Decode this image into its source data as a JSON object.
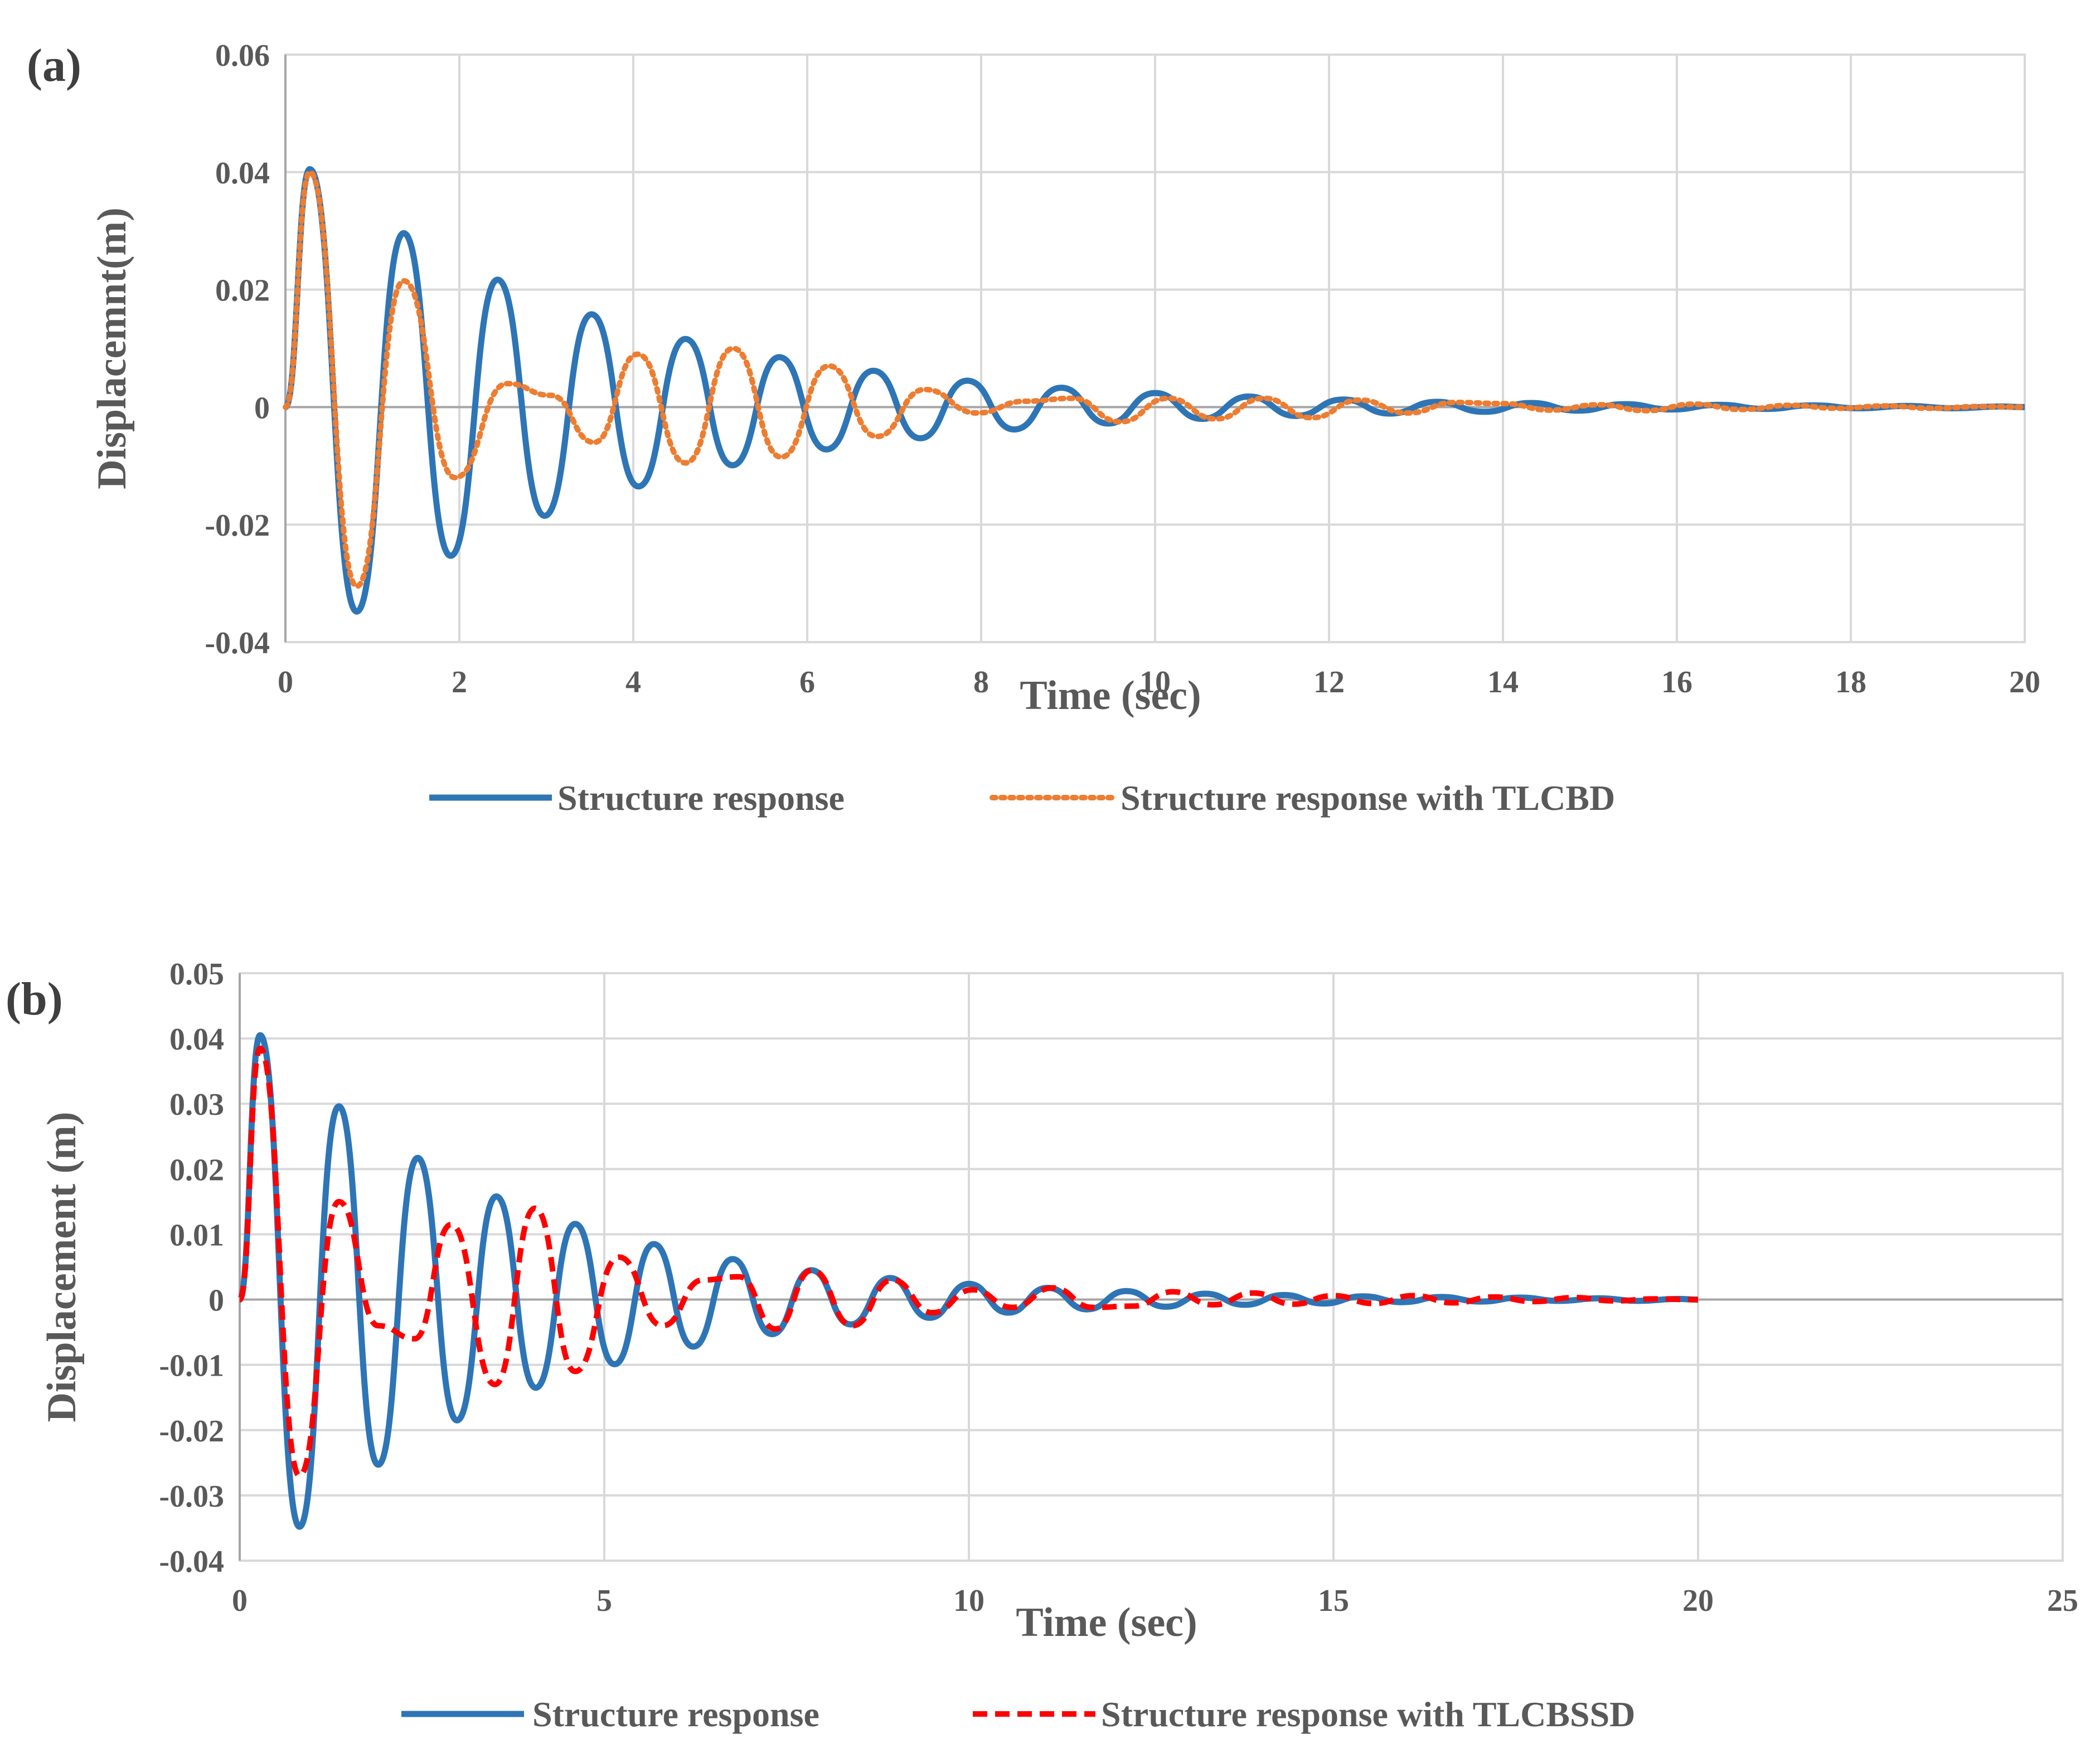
{
  "chart_data": [
    {
      "type": "line",
      "panel_label": "(a)",
      "xlabel": "Time (sec)",
      "ylabel": "Displacemnt(m)",
      "xlim": [
        0,
        20
      ],
      "ylim": [
        -0.04,
        0.06
      ],
      "xticks": [
        0,
        2,
        4,
        6,
        8,
        10,
        12,
        14,
        16,
        18,
        20
      ],
      "yticks": [
        -0.04,
        -0.02,
        0,
        0.02,
        0.04,
        0.06
      ],
      "xtick_labels": [
        "0",
        "2",
        "4",
        "6",
        "8",
        "10",
        "12",
        "14",
        "16",
        "18",
        "20"
      ],
      "ytick_labels": [
        "-0.04",
        "-0.02",
        "0",
        "0.02",
        "0.04",
        "0.06"
      ],
      "grid": true,
      "legend_position": "bottom",
      "series": [
        {
          "name": "Structure response",
          "color": "#2E75B6",
          "style": "solid",
          "x": [
            0,
            0.28,
            0.82,
            1.36,
            1.9,
            2.44,
            2.98,
            3.52,
            4.06,
            4.6,
            5.14,
            5.68,
            6.22,
            6.76,
            7.3,
            7.84,
            8.38,
            8.92,
            9.46,
            10.0,
            10.54,
            11.08,
            11.62,
            12.16,
            12.7,
            13.24,
            13.78,
            14.32,
            14.86,
            15.4,
            15.94,
            16.48,
            17.02,
            17.56,
            18.1,
            18.64,
            19.18,
            19.72,
            20.0
          ],
          "y": [
            0,
            0.0405,
            -0.0348,
            0.0296,
            -0.0253,
            0.0217,
            -0.0185,
            0.0158,
            -0.0135,
            0.0116,
            -0.0099,
            0.0085,
            -0.0072,
            0.0062,
            -0.0053,
            0.0045,
            -0.0038,
            0.0033,
            -0.0028,
            0.0024,
            -0.002,
            0.0018,
            -0.0015,
            0.0013,
            -0.0011,
            0.0009,
            -0.0008,
            0.0007,
            -0.0006,
            0.0005,
            -0.0004,
            0.0004,
            -0.0003,
            0.0003,
            -0.0002,
            0.0002,
            -0.0002,
            0.0001,
            0
          ]
        },
        {
          "name": "Structure response with TLCBD",
          "color": "#ED7D31",
          "style": "dotted",
          "x": [
            0,
            0.28,
            0.82,
            1.36,
            1.95,
            2.55,
            3.05,
            3.55,
            4.05,
            4.6,
            5.15,
            5.7,
            6.25,
            6.8,
            7.35,
            7.95,
            8.5,
            9.05,
            9.6,
            10.15,
            10.7,
            11.25,
            11.8,
            12.35,
            12.9,
            13.45,
            14.0,
            14.55,
            15.1,
            15.65,
            16.2,
            16.75,
            17.3,
            17.85,
            18.4,
            18.95,
            19.5,
            20.0
          ],
          "y": [
            0,
            0.04,
            -0.0305,
            0.0215,
            -0.012,
            0.004,
            0.002,
            -0.006,
            0.009,
            -0.0095,
            0.01,
            -0.0085,
            0.007,
            -0.005,
            0.003,
            -0.001,
            0.001,
            0.0015,
            -0.0025,
            0.0015,
            -0.002,
            0.0015,
            -0.0018,
            0.0012,
            -0.001,
            0.0008,
            0.0006,
            -0.0005,
            0.0004,
            -0.0006,
            0.0005,
            -0.0004,
            0.0003,
            -0.0002,
            0.0002,
            -0.0002,
            0.0001,
            0
          ]
        }
      ]
    },
    {
      "type": "line",
      "panel_label": "(b)",
      "xlabel": "Time (sec)",
      "ylabel": "Displacement (m)",
      "xlim": [
        0,
        25
      ],
      "ylim": [
        -0.04,
        0.05
      ],
      "xticks": [
        0,
        5,
        10,
        15,
        20,
        25
      ],
      "yticks": [
        -0.04,
        -0.03,
        -0.02,
        -0.01,
        0,
        0.01,
        0.02,
        0.03,
        0.04,
        0.05
      ],
      "xtick_labels": [
        "0",
        "5",
        "10",
        "15",
        "20",
        "25"
      ],
      "ytick_labels": [
        "-0.04",
        "-0.03",
        "-0.02",
        "-0.01",
        "0",
        "0.01",
        "0.02",
        "0.03",
        "0.04",
        "0.05"
      ],
      "grid": true,
      "legend_position": "bottom",
      "series": [
        {
          "name": "Structure response",
          "color": "#2E75B6",
          "style": "solid",
          "x": [
            0,
            0.28,
            0.82,
            1.36,
            1.9,
            2.44,
            2.98,
            3.52,
            4.06,
            4.6,
            5.14,
            5.68,
            6.22,
            6.76,
            7.3,
            7.84,
            8.38,
            8.92,
            9.46,
            10.0,
            10.54,
            11.08,
            11.62,
            12.16,
            12.7,
            13.24,
            13.78,
            14.32,
            14.86,
            15.4,
            15.94,
            16.48,
            17.02,
            17.56,
            18.1,
            18.64,
            19.18,
            19.72,
            20.0
          ],
          "y": [
            0,
            0.0405,
            -0.0348,
            0.0296,
            -0.0253,
            0.0217,
            -0.0185,
            0.0158,
            -0.0135,
            0.0116,
            -0.0099,
            0.0085,
            -0.0072,
            0.0062,
            -0.0053,
            0.0045,
            -0.0038,
            0.0033,
            -0.0028,
            0.0024,
            -0.002,
            0.0018,
            -0.0015,
            0.0013,
            -0.0011,
            0.0009,
            -0.0008,
            0.0007,
            -0.0006,
            0.0005,
            -0.0004,
            0.0004,
            -0.0003,
            0.0003,
            -0.0002,
            0.0002,
            -0.0002,
            0.0001,
            0
          ]
        },
        {
          "name": "Structure response with TLCBSSD",
          "color": "#FF0000",
          "style": "dashed",
          "x": [
            0,
            0.28,
            0.82,
            1.36,
            1.9,
            2.4,
            2.9,
            3.5,
            4.05,
            4.6,
            5.2,
            5.8,
            6.35,
            6.85,
            7.35,
            7.85,
            8.4,
            8.95,
            9.5,
            10.05,
            10.6,
            11.15,
            11.7,
            12.25,
            12.8,
            13.35,
            13.9,
            14.45,
            15.0,
            15.55,
            16.1,
            16.65,
            17.2,
            17.75,
            18.3,
            18.85,
            19.4,
            20.0
          ],
          "y": [
            0,
            0.0385,
            -0.027,
            0.015,
            -0.004,
            -0.006,
            0.0115,
            -0.013,
            0.014,
            -0.011,
            0.0065,
            -0.004,
            0.003,
            0.0035,
            -0.0045,
            0.0045,
            -0.004,
            0.003,
            -0.002,
            0.0015,
            -0.0012,
            0.0018,
            -0.0012,
            -0.001,
            0.0012,
            -0.0008,
            0.001,
            -0.0007,
            0.0006,
            -0.0006,
            0.0006,
            -0.0005,
            0.0004,
            -0.0003,
            0.0003,
            -0.0002,
            0.0001,
            0
          ]
        }
      ]
    }
  ]
}
